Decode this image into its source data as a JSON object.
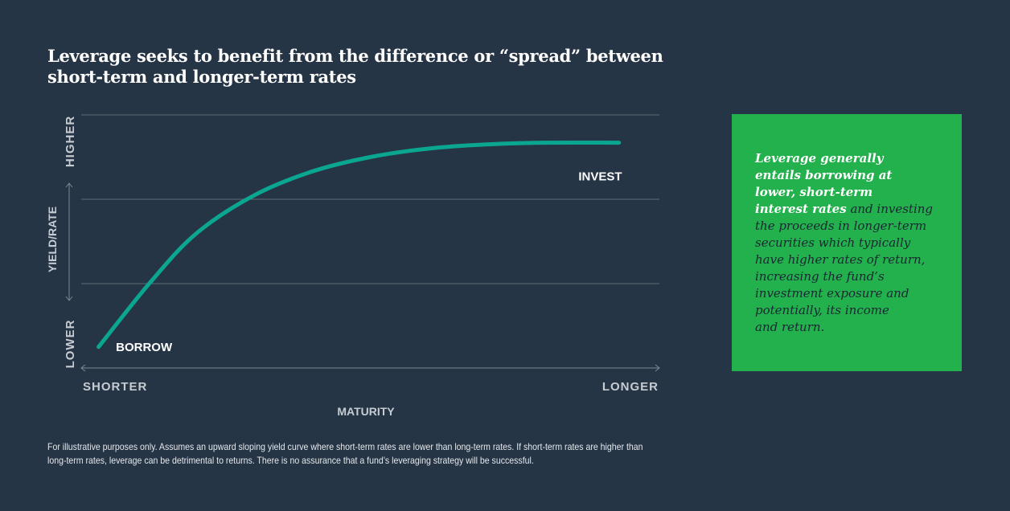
{
  "title_lines": [
    "Leverage seeks to benefit from the difference or “spread” between",
    "short-term and longer-term rates"
  ],
  "chart_data": {
    "type": "line",
    "x_axis": {
      "label": "MATURITY",
      "start_label": "SHORTER",
      "end_label": "LONGER",
      "range": [
        0,
        1
      ]
    },
    "y_axis": {
      "label": "YIELD/RATE",
      "start_label": "LOWER",
      "end_label": "HIGHER",
      "range": [
        0,
        3
      ]
    },
    "grid": true,
    "gridlines_y": [
      1,
      2,
      3
    ],
    "series": [
      {
        "color": "#0aa68f",
        "x": [
          0.03,
          0.12,
          0.2,
          0.3,
          0.4,
          0.5,
          0.6,
          0.7,
          0.8,
          0.93
        ],
        "y": [
          0.25,
          1.02,
          1.6,
          2.05,
          2.33,
          2.5,
          2.6,
          2.65,
          2.67,
          2.67
        ]
      }
    ],
    "annotations": [
      {
        "text": "BORROW",
        "x": 0.06,
        "y": 0.25
      },
      {
        "text": "INVEST",
        "x": 0.86,
        "y": 2.27
      }
    ]
  },
  "callout": {
    "lead_lines": [
      "Leverage generally",
      "entails borrowing at",
      "lower, short-term",
      "interest rates"
    ],
    "rest_first": " and investing",
    "rest_lines": [
      "the proceeds in longer-term",
      "securities which typically",
      "have higher rates of return,",
      "increasing the fund’s",
      "investment exposure and",
      "potentially, its income",
      "and return."
    ],
    "background": "#23b14d"
  },
  "footnote_lines": [
    "For illustrative purposes only. Assumes an upward sloping yield curve where short-term rates are lower than long-term rates. If short-term rates are higher than",
    "long-term rates, leverage can be detrimental to returns. There is no assurance that a fund’s leveraging strategy will be successful."
  ],
  "colors": {
    "background": "#263545",
    "curve": "#0aa68f",
    "axis": "#7c8793",
    "axis_text": "#c7ccd2"
  }
}
